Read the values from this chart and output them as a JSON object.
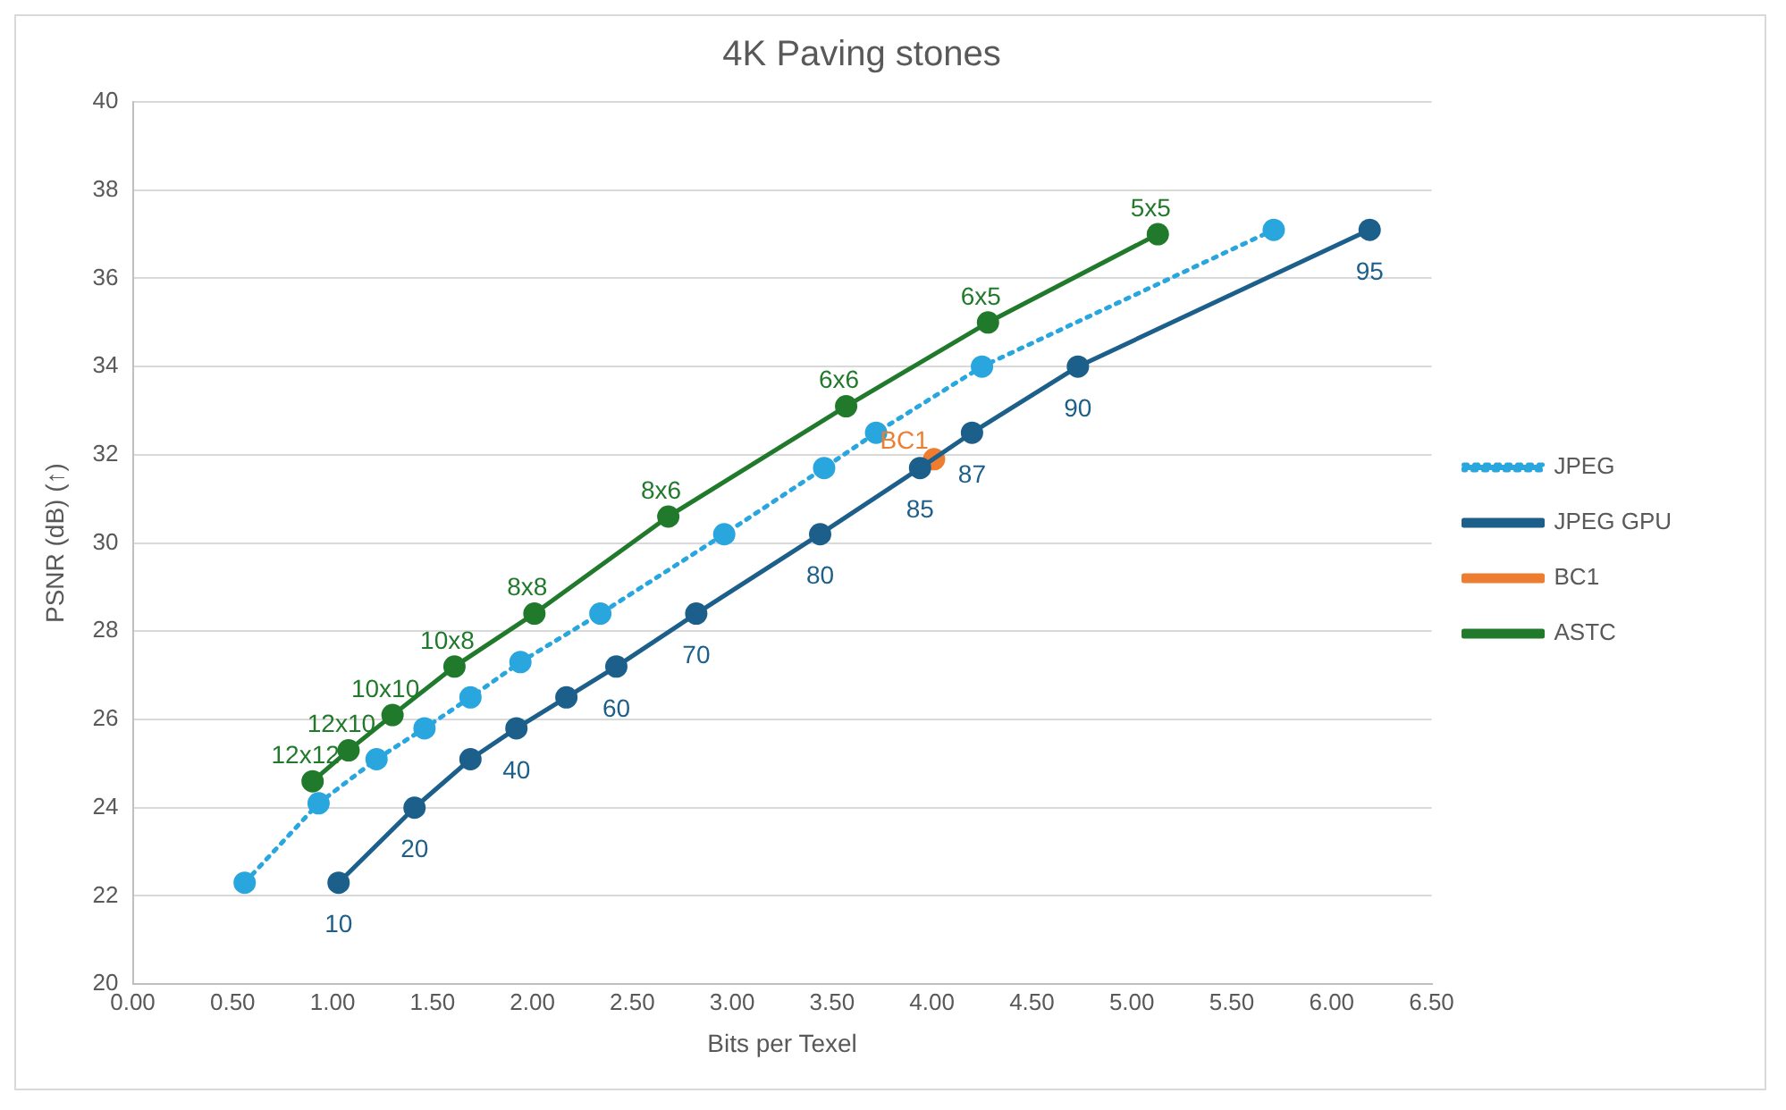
{
  "chart_data": {
    "type": "line",
    "title": "4K Paving stones",
    "xlabel": "Bits per Texel",
    "ylabel": "PSNR (dB) (↑)",
    "xlim": [
      0,
      6.5
    ],
    "xticks": [
      {
        "value": 0,
        "label": "0.00"
      },
      {
        "value": 0.5,
        "label": "0.50"
      },
      {
        "value": 1,
        "label": "1.00"
      },
      {
        "value": 1.5,
        "label": "1.50"
      },
      {
        "value": 2,
        "label": "2.00"
      },
      {
        "value": 2.5,
        "label": "2.50"
      },
      {
        "value": 3,
        "label": "3.00"
      },
      {
        "value": 3.5,
        "label": "3.50"
      },
      {
        "value": 4,
        "label": "4.00"
      },
      {
        "value": 4.5,
        "label": "4.50"
      },
      {
        "value": 5,
        "label": "5.00"
      },
      {
        "value": 5.5,
        "label": "5.50"
      },
      {
        "value": 6,
        "label": "6.00"
      },
      {
        "value": 6.5,
        "label": "6.50"
      }
    ],
    "ylim": [
      20,
      40
    ],
    "yticks": [
      20,
      22,
      24,
      26,
      28,
      30,
      32,
      34,
      36,
      38,
      40
    ],
    "grid": "y",
    "legend": "right",
    "marker": "circle",
    "series": [
      {
        "name": "JPEG",
        "color": "#2aa6de",
        "line_style": "dotted",
        "x": [
          0.56,
          0.93,
          1.22,
          1.46,
          1.69,
          1.94,
          2.34,
          2.96,
          3.46,
          3.72,
          4.25,
          5.71
        ],
        "values": [
          22.3,
          24.1,
          25.1,
          25.8,
          26.5,
          27.3,
          28.4,
          30.2,
          31.7,
          32.5,
          34.0,
          37.1
        ]
      },
      {
        "name": "JPEG GPU",
        "color": "#1c5f8a",
        "line_style": "solid",
        "x": [
          1.03,
          1.41,
          1.69,
          1.92,
          2.17,
          2.42,
          2.82,
          3.44,
          3.94,
          4.2,
          4.73,
          6.19
        ],
        "values": [
          22.3,
          24.0,
          25.1,
          25.8,
          26.5,
          27.2,
          28.4,
          30.2,
          31.7,
          32.5,
          34.0,
          37.1
        ]
      },
      {
        "name": "BC1",
        "color": "#ed7d31",
        "line_style": "solid",
        "x": [
          4.01
        ],
        "values": [
          31.9
        ]
      },
      {
        "name": "ASTC",
        "color": "#217a2c",
        "line_style": "solid",
        "x": [
          0.9,
          1.08,
          1.3,
          1.61,
          2.01,
          2.68,
          3.57,
          4.28,
          5.13
        ],
        "values": [
          24.6,
          25.3,
          26.1,
          27.2,
          28.4,
          30.6,
          33.1,
          35.0,
          37.0
        ]
      }
    ],
    "annotations": [
      {
        "text": "10",
        "x": 1.03,
        "y": 22.3
      },
      {
        "text": "20",
        "x": 1.41,
        "y": 24.0
      },
      {
        "text": "40",
        "x": 1.92,
        "y": 25.8
      },
      {
        "text": "60",
        "x": 2.42,
        "y": 27.2
      },
      {
        "text": "70",
        "x": 2.82,
        "y": 28.4
      },
      {
        "text": "80",
        "x": 3.44,
        "y": 30.2
      },
      {
        "text": "85",
        "x": 3.94,
        "y": 31.7
      },
      {
        "text": "87",
        "x": 4.2,
        "y": 32.5
      },
      {
        "text": "90",
        "x": 4.73,
        "y": 34.0
      },
      {
        "text": "95",
        "x": 6.19,
        "y": 37.1
      },
      {
        "text": "BC1",
        "x": 4.01,
        "y": 31.9
      },
      {
        "text": "12x12",
        "x": 0.9,
        "y": 24.6
      },
      {
        "text": "12x10",
        "x": 1.08,
        "y": 25.3
      },
      {
        "text": "10x10",
        "x": 1.3,
        "y": 26.1
      },
      {
        "text": "10x8",
        "x": 1.61,
        "y": 27.2
      },
      {
        "text": "8x8",
        "x": 2.01,
        "y": 28.4
      },
      {
        "text": "8x6",
        "x": 2.68,
        "y": 30.6
      },
      {
        "text": "6x6",
        "x": 3.57,
        "y": 33.1
      },
      {
        "text": "6x5",
        "x": 4.28,
        "y": 35.0
      },
      {
        "text": "5x5",
        "x": 5.13,
        "y": 37.0
      }
    ]
  }
}
